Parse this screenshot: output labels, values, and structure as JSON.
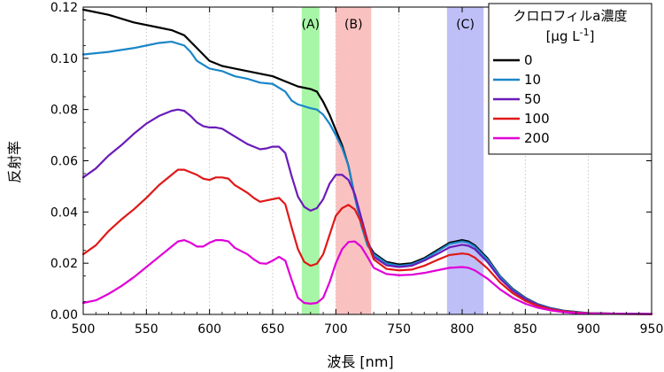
{
  "chart_data": {
    "type": "line",
    "title": "",
    "xlabel": "波長 [nm]",
    "ylabel": "反射率",
    "xlim": [
      500,
      950
    ],
    "ylim": [
      0,
      0.12
    ],
    "x_ticks": [
      500,
      550,
      600,
      650,
      700,
      750,
      800,
      850,
      900,
      950
    ],
    "x_tick_labels": [
      "500",
      "550",
      "600",
      "650",
      "700",
      "750",
      "800",
      "850",
      "900",
      "950"
    ],
    "y_ticks": [
      0,
      0.02,
      0.04,
      0.06,
      0.08,
      0.1,
      0.12
    ],
    "y_tick_labels": [
      "0.00",
      "0.02",
      "0.04",
      "0.06",
      "0.08",
      "0.10",
      "0.12"
    ],
    "grid": "vertical dotted",
    "bands": [
      {
        "label": "(A)",
        "from": 673,
        "to": 687,
        "color": "#98f598"
      },
      {
        "label": "(B)",
        "from": 700,
        "to": 728,
        "color": "#f9b6b6"
      },
      {
        "label": "(C)",
        "from": 788,
        "to": 817,
        "color": "#b4b4f7"
      }
    ],
    "legend": {
      "title_line1": "クロロフィルa濃度",
      "title_line2": "[μg L",
      "title_sup": "-1",
      "title_end": "]",
      "position": "top-right"
    },
    "series": [
      {
        "name": "0",
        "color": "#000000",
        "points": [
          [
            500,
            0.119
          ],
          [
            520,
            0.117
          ],
          [
            540,
            0.114
          ],
          [
            560,
            0.112
          ],
          [
            570,
            0.111
          ],
          [
            580,
            0.109
          ],
          [
            590,
            0.104
          ],
          [
            600,
            0.099
          ],
          [
            610,
            0.097
          ],
          [
            620,
            0.096
          ],
          [
            630,
            0.095
          ],
          [
            640,
            0.094
          ],
          [
            650,
            0.093
          ],
          [
            660,
            0.091
          ],
          [
            665,
            0.09
          ],
          [
            670,
            0.089
          ],
          [
            680,
            0.088
          ],
          [
            685,
            0.087
          ],
          [
            690,
            0.083
          ],
          [
            695,
            0.078
          ],
          [
            700,
            0.072
          ],
          [
            705,
            0.066
          ],
          [
            710,
            0.058
          ],
          [
            715,
            0.046
          ],
          [
            720,
            0.036
          ],
          [
            725,
            0.028
          ],
          [
            730,
            0.024
          ],
          [
            740,
            0.0205
          ],
          [
            750,
            0.0195
          ],
          [
            760,
            0.02
          ],
          [
            770,
            0.022
          ],
          [
            780,
            0.025
          ],
          [
            790,
            0.028
          ],
          [
            800,
            0.029
          ],
          [
            805,
            0.0285
          ],
          [
            810,
            0.027
          ],
          [
            820,
            0.022
          ],
          [
            830,
            0.015
          ],
          [
            840,
            0.01
          ],
          [
            850,
            0.0065
          ],
          [
            860,
            0.004
          ],
          [
            870,
            0.0025
          ],
          [
            880,
            0.0015
          ],
          [
            890,
            0.001
          ],
          [
            900,
            0.0005
          ],
          [
            920,
            0.0003
          ],
          [
            950,
            0.0002
          ]
        ]
      },
      {
        "name": "10",
        "color": "#1a86c8",
        "points": [
          [
            500,
            0.1015
          ],
          [
            520,
            0.1025
          ],
          [
            540,
            0.104
          ],
          [
            550,
            0.105
          ],
          [
            560,
            0.106
          ],
          [
            570,
            0.1065
          ],
          [
            580,
            0.105
          ],
          [
            585,
            0.1025
          ],
          [
            590,
            0.099
          ],
          [
            595,
            0.0975
          ],
          [
            600,
            0.096
          ],
          [
            610,
            0.095
          ],
          [
            620,
            0.093
          ],
          [
            630,
            0.092
          ],
          [
            640,
            0.0905
          ],
          [
            650,
            0.09
          ],
          [
            660,
            0.087
          ],
          [
            665,
            0.0835
          ],
          [
            670,
            0.082
          ],
          [
            680,
            0.0805
          ],
          [
            685,
            0.08
          ],
          [
            690,
            0.078
          ],
          [
            695,
            0.0745
          ],
          [
            700,
            0.07
          ],
          [
            705,
            0.065
          ],
          [
            710,
            0.058
          ],
          [
            715,
            0.046
          ],
          [
            720,
            0.035
          ],
          [
            725,
            0.027
          ],
          [
            730,
            0.0235
          ],
          [
            740,
            0.02
          ],
          [
            750,
            0.019
          ],
          [
            760,
            0.0195
          ],
          [
            770,
            0.0215
          ],
          [
            780,
            0.0245
          ],
          [
            790,
            0.0275
          ],
          [
            800,
            0.0285
          ],
          [
            805,
            0.028
          ],
          [
            810,
            0.0265
          ],
          [
            820,
            0.0215
          ],
          [
            830,
            0.0148
          ],
          [
            840,
            0.0098
          ],
          [
            850,
            0.0063
          ],
          [
            860,
            0.0039
          ],
          [
            870,
            0.0024
          ],
          [
            880,
            0.0014
          ],
          [
            890,
            0.0009
          ],
          [
            900,
            0.0005
          ],
          [
            920,
            0.0003
          ],
          [
            950,
            0.0002
          ]
        ]
      },
      {
        "name": "50",
        "color": "#6a1bb8",
        "points": [
          [
            500,
            0.0535
          ],
          [
            510,
            0.057
          ],
          [
            520,
            0.062
          ],
          [
            530,
            0.066
          ],
          [
            540,
            0.0705
          ],
          [
            550,
            0.0745
          ],
          [
            560,
            0.0775
          ],
          [
            570,
            0.0795
          ],
          [
            575,
            0.08
          ],
          [
            580,
            0.0795
          ],
          [
            585,
            0.0775
          ],
          [
            590,
            0.075
          ],
          [
            595,
            0.0735
          ],
          [
            600,
            0.073
          ],
          [
            605,
            0.073
          ],
          [
            610,
            0.0725
          ],
          [
            620,
            0.0695
          ],
          [
            630,
            0.0665
          ],
          [
            635,
            0.0655
          ],
          [
            640,
            0.0645
          ],
          [
            645,
            0.0648
          ],
          [
            650,
            0.0655
          ],
          [
            655,
            0.0655
          ],
          [
            660,
            0.063
          ],
          [
            665,
            0.054
          ],
          [
            670,
            0.046
          ],
          [
            675,
            0.042
          ],
          [
            680,
            0.0405
          ],
          [
            685,
            0.0415
          ],
          [
            690,
            0.045
          ],
          [
            695,
            0.051
          ],
          [
            700,
            0.0545
          ],
          [
            705,
            0.0545
          ],
          [
            710,
            0.0525
          ],
          [
            715,
            0.047
          ],
          [
            720,
            0.038
          ],
          [
            725,
            0.029
          ],
          [
            730,
            0.0225
          ],
          [
            740,
            0.0192
          ],
          [
            750,
            0.0185
          ],
          [
            760,
            0.019
          ],
          [
            770,
            0.021
          ],
          [
            780,
            0.0235
          ],
          [
            790,
            0.0262
          ],
          [
            800,
            0.0272
          ],
          [
            805,
            0.0268
          ],
          [
            810,
            0.0255
          ],
          [
            820,
            0.0205
          ],
          [
            830,
            0.014
          ],
          [
            840,
            0.0093
          ],
          [
            850,
            0.006
          ],
          [
            860,
            0.0037
          ],
          [
            870,
            0.0022
          ],
          [
            880,
            0.0013
          ],
          [
            890,
            0.0008
          ],
          [
            900,
            0.0005
          ],
          [
            920,
            0.0003
          ],
          [
            950,
            0.0002
          ]
        ]
      },
      {
        "name": "100",
        "color": "#e01818",
        "points": [
          [
            500,
            0.0235
          ],
          [
            510,
            0.027
          ],
          [
            520,
            0.0325
          ],
          [
            530,
            0.037
          ],
          [
            540,
            0.041
          ],
          [
            550,
            0.0455
          ],
          [
            560,
            0.0505
          ],
          [
            570,
            0.0545
          ],
          [
            575,
            0.0565
          ],
          [
            580,
            0.0565
          ],
          [
            585,
            0.0555
          ],
          [
            590,
            0.0545
          ],
          [
            595,
            0.053
          ],
          [
            600,
            0.0525
          ],
          [
            605,
            0.0535
          ],
          [
            610,
            0.0535
          ],
          [
            615,
            0.053
          ],
          [
            620,
            0.0505
          ],
          [
            630,
            0.0475
          ],
          [
            635,
            0.0455
          ],
          [
            640,
            0.044
          ],
          [
            645,
            0.0445
          ],
          [
            650,
            0.045
          ],
          [
            655,
            0.0455
          ],
          [
            660,
            0.043
          ],
          [
            665,
            0.034
          ],
          [
            670,
            0.0255
          ],
          [
            675,
            0.0205
          ],
          [
            680,
            0.019
          ],
          [
            685,
            0.0198
          ],
          [
            690,
            0.0235
          ],
          [
            695,
            0.031
          ],
          [
            700,
            0.0385
          ],
          [
            705,
            0.0415
          ],
          [
            710,
            0.0428
          ],
          [
            715,
            0.041
          ],
          [
            720,
            0.036
          ],
          [
            725,
            0.0285
          ],
          [
            730,
            0.0215
          ],
          [
            740,
            0.0178
          ],
          [
            750,
            0.0172
          ],
          [
            760,
            0.0175
          ],
          [
            770,
            0.019
          ],
          [
            780,
            0.0212
          ],
          [
            790,
            0.0232
          ],
          [
            800,
            0.0238
          ],
          [
            805,
            0.0235
          ],
          [
            810,
            0.0222
          ],
          [
            820,
            0.018
          ],
          [
            830,
            0.0125
          ],
          [
            840,
            0.0083
          ],
          [
            850,
            0.0053
          ],
          [
            860,
            0.0033
          ],
          [
            870,
            0.002
          ],
          [
            880,
            0.0012
          ],
          [
            890,
            0.0007
          ],
          [
            900,
            0.0004
          ],
          [
            920,
            0.0002
          ],
          [
            950,
            0.0001
          ]
        ]
      },
      {
        "name": "200",
        "color": "#e000d8",
        "points": [
          [
            500,
            0.0045
          ],
          [
            510,
            0.0055
          ],
          [
            520,
            0.008
          ],
          [
            530,
            0.011
          ],
          [
            540,
            0.0145
          ],
          [
            550,
            0.0185
          ],
          [
            560,
            0.0225
          ],
          [
            570,
            0.0265
          ],
          [
            575,
            0.0285
          ],
          [
            580,
            0.029
          ],
          [
            585,
            0.028
          ],
          [
            590,
            0.0265
          ],
          [
            595,
            0.0265
          ],
          [
            600,
            0.028
          ],
          [
            605,
            0.029
          ],
          [
            610,
            0.029
          ],
          [
            615,
            0.0285
          ],
          [
            620,
            0.026
          ],
          [
            630,
            0.0235
          ],
          [
            635,
            0.0215
          ],
          [
            640,
            0.02
          ],
          [
            645,
            0.0198
          ],
          [
            650,
            0.021
          ],
          [
            655,
            0.0225
          ],
          [
            660,
            0.021
          ],
          [
            665,
            0.0135
          ],
          [
            670,
            0.0065
          ],
          [
            675,
            0.0045
          ],
          [
            680,
            0.0042
          ],
          [
            685,
            0.0045
          ],
          [
            690,
            0.0065
          ],
          [
            695,
            0.0125
          ],
          [
            700,
            0.02
          ],
          [
            705,
            0.0255
          ],
          [
            710,
            0.0283
          ],
          [
            715,
            0.0285
          ],
          [
            720,
            0.0265
          ],
          [
            725,
            0.0225
          ],
          [
            730,
            0.0182
          ],
          [
            740,
            0.0158
          ],
          [
            750,
            0.0153
          ],
          [
            760,
            0.0155
          ],
          [
            770,
            0.0162
          ],
          [
            780,
            0.0172
          ],
          [
            790,
            0.0182
          ],
          [
            800,
            0.0185
          ],
          [
            805,
            0.0182
          ],
          [
            810,
            0.0172
          ],
          [
            820,
            0.014
          ],
          [
            830,
            0.0098
          ],
          [
            840,
            0.0065
          ],
          [
            850,
            0.0042
          ],
          [
            860,
            0.0026
          ],
          [
            870,
            0.0016
          ],
          [
            880,
            0.0009
          ],
          [
            890,
            0.0005
          ],
          [
            900,
            0.0003
          ],
          [
            920,
            0.0002
          ],
          [
            950,
            0.0001
          ]
        ]
      }
    ]
  }
}
